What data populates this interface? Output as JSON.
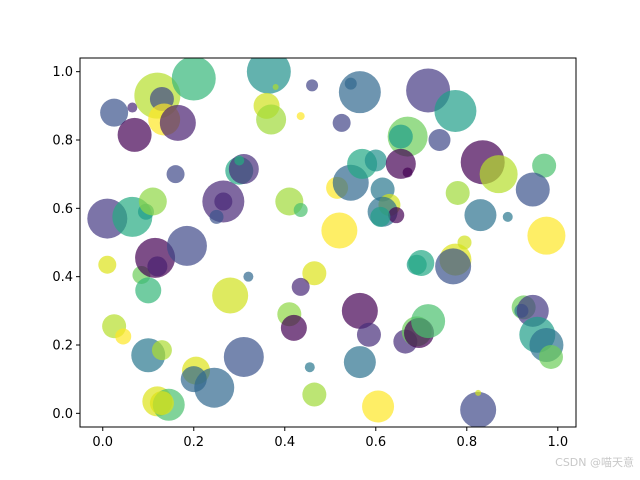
{
  "chart_data": {
    "type": "scatter",
    "title": "",
    "xlabel": "",
    "ylabel": "",
    "xlim": [
      -0.05,
      1.04
    ],
    "ylim": [
      -0.04,
      1.04
    ],
    "grid": false,
    "legend": "none",
    "colormap": "viridis",
    "alpha": 0.7,
    "x_ticks": [
      "0.0",
      "0.2",
      "0.4",
      "0.6",
      "0.8",
      "1.0"
    ],
    "y_ticks": [
      "0.0",
      "0.2",
      "0.4",
      "0.6",
      "0.8",
      "1.0"
    ],
    "points": [
      {
        "x": 0.025,
        "y": 0.88,
        "size": 14,
        "color": "#3b528b"
      },
      {
        "x": 0.065,
        "y": 0.895,
        "size": 5,
        "color": "#482878"
      },
      {
        "x": 0.07,
        "y": 0.815,
        "size": 17,
        "color": "#440154"
      },
      {
        "x": 0.12,
        "y": 0.93,
        "size": 23,
        "color": "#b5de2b"
      },
      {
        "x": 0.13,
        "y": 0.92,
        "size": 12,
        "color": "#3e4989"
      },
      {
        "x": 0.135,
        "y": 0.86,
        "size": 16,
        "color": "#fde725"
      },
      {
        "x": 0.165,
        "y": 0.85,
        "size": 18,
        "color": "#481f70"
      },
      {
        "x": 0.2,
        "y": 0.98,
        "size": 22,
        "color": "#35b779"
      },
      {
        "x": 0.365,
        "y": 1.0,
        "size": 22,
        "color": "#21918c"
      },
      {
        "x": 0.36,
        "y": 0.9,
        "size": 13,
        "color": "#d0e11c"
      },
      {
        "x": 0.37,
        "y": 0.86,
        "size": 15,
        "color": "#a0da39"
      },
      {
        "x": 0.38,
        "y": 0.955,
        "size": 3,
        "color": "#addc30"
      },
      {
        "x": 0.46,
        "y": 0.96,
        "size": 6,
        "color": "#414487"
      },
      {
        "x": 0.435,
        "y": 0.87,
        "size": 4,
        "color": "#fde725"
      },
      {
        "x": 0.525,
        "y": 0.85,
        "size": 9,
        "color": "#414487"
      },
      {
        "x": 0.545,
        "y": 0.965,
        "size": 6,
        "color": "#31688e"
      },
      {
        "x": 0.565,
        "y": 0.94,
        "size": 21,
        "color": "#31688e"
      },
      {
        "x": 0.67,
        "y": 0.81,
        "size": 20,
        "color": "#6ccd5a"
      },
      {
        "x": 0.655,
        "y": 0.81,
        "size": 12,
        "color": "#1f9e89"
      },
      {
        "x": 0.715,
        "y": 0.945,
        "size": 22,
        "color": "#443983"
      },
      {
        "x": 0.74,
        "y": 0.8,
        "size": 11,
        "color": "#3e4989"
      },
      {
        "x": 0.775,
        "y": 0.885,
        "size": 21,
        "color": "#1f9e89"
      },
      {
        "x": 0.835,
        "y": 0.735,
        "size": 22,
        "color": "#440154"
      },
      {
        "x": 0.87,
        "y": 0.7,
        "size": 19,
        "color": "#b5de2b"
      },
      {
        "x": 0.97,
        "y": 0.725,
        "size": 12,
        "color": "#4ac16d"
      },
      {
        "x": 0.945,
        "y": 0.655,
        "size": 17,
        "color": "#3b528b"
      },
      {
        "x": 0.83,
        "y": 0.58,
        "size": 16,
        "color": "#2c728e"
      },
      {
        "x": 0.89,
        "y": 0.575,
        "size": 5,
        "color": "#2a788e"
      },
      {
        "x": 0.975,
        "y": 0.52,
        "size": 19,
        "color": "#fde725"
      },
      {
        "x": 0.78,
        "y": 0.645,
        "size": 12,
        "color": "#a0da39"
      },
      {
        "x": 0.01,
        "y": 0.57,
        "size": 20,
        "color": "#443983"
      },
      {
        "x": 0.065,
        "y": 0.575,
        "size": 20,
        "color": "#25ab82"
      },
      {
        "x": 0.095,
        "y": 0.59,
        "size": 8,
        "color": "#1f9e89"
      },
      {
        "x": 0.11,
        "y": 0.62,
        "size": 14,
        "color": "#8fd744"
      },
      {
        "x": 0.16,
        "y": 0.7,
        "size": 9,
        "color": "#3e4989"
      },
      {
        "x": 0.265,
        "y": 0.62,
        "size": 21,
        "color": "#482878"
      },
      {
        "x": 0.265,
        "y": 0.62,
        "size": 9,
        "color": "#482878"
      },
      {
        "x": 0.25,
        "y": 0.575,
        "size": 7,
        "color": "#3b528b"
      },
      {
        "x": 0.3,
        "y": 0.71,
        "size": 14,
        "color": "#22a884"
      },
      {
        "x": 0.31,
        "y": 0.715,
        "size": 15,
        "color": "#472d7b"
      },
      {
        "x": 0.3,
        "y": 0.74,
        "size": 5,
        "color": "#25ab82"
      },
      {
        "x": 0.41,
        "y": 0.62,
        "size": 14,
        "color": "#a0da39"
      },
      {
        "x": 0.435,
        "y": 0.595,
        "size": 7,
        "color": "#4ac16d"
      },
      {
        "x": 0.515,
        "y": 0.66,
        "size": 11,
        "color": "#fde725"
      },
      {
        "x": 0.545,
        "y": 0.675,
        "size": 18,
        "color": "#31688e"
      },
      {
        "x": 0.57,
        "y": 0.73,
        "size": 15,
        "color": "#22a884"
      },
      {
        "x": 0.6,
        "y": 0.74,
        "size": 11,
        "color": "#21918c"
      },
      {
        "x": 0.615,
        "y": 0.655,
        "size": 12,
        "color": "#2a788e"
      },
      {
        "x": 0.63,
        "y": 0.61,
        "size": 11,
        "color": "#d0e11c"
      },
      {
        "x": 0.615,
        "y": 0.59,
        "size": 15,
        "color": "#2c728e"
      },
      {
        "x": 0.645,
        "y": 0.58,
        "size": 8,
        "color": "#440154"
      },
      {
        "x": 0.61,
        "y": 0.575,
        "size": 10,
        "color": "#1f9e89"
      },
      {
        "x": 0.655,
        "y": 0.73,
        "size": 15,
        "color": "#440154"
      },
      {
        "x": 0.67,
        "y": 0.705,
        "size": 5,
        "color": "#440154"
      },
      {
        "x": 0.52,
        "y": 0.535,
        "size": 18,
        "color": "#fde725"
      },
      {
        "x": 0.01,
        "y": 0.435,
        "size": 9,
        "color": "#dde318"
      },
      {
        "x": 0.085,
        "y": 0.405,
        "size": 9,
        "color": "#6ccd5a"
      },
      {
        "x": 0.1,
        "y": 0.36,
        "size": 13,
        "color": "#35b779"
      },
      {
        "x": 0.115,
        "y": 0.455,
        "size": 20,
        "color": "#440154"
      },
      {
        "x": 0.12,
        "y": 0.43,
        "size": 10,
        "color": "#481f70"
      },
      {
        "x": 0.185,
        "y": 0.49,
        "size": 20,
        "color": "#3e4989"
      },
      {
        "x": 0.28,
        "y": 0.345,
        "size": 18,
        "color": "#d0e11c"
      },
      {
        "x": 0.32,
        "y": 0.4,
        "size": 5,
        "color": "#31688e"
      },
      {
        "x": 0.465,
        "y": 0.41,
        "size": 12,
        "color": "#dde318"
      },
      {
        "x": 0.435,
        "y": 0.37,
        "size": 9,
        "color": "#482878"
      },
      {
        "x": 0.41,
        "y": 0.29,
        "size": 12,
        "color": "#8fd744"
      },
      {
        "x": 0.42,
        "y": 0.25,
        "size": 13,
        "color": "#440154"
      },
      {
        "x": 0.455,
        "y": 0.135,
        "size": 5,
        "color": "#2a788e"
      },
      {
        "x": 0.465,
        "y": 0.055,
        "size": 12,
        "color": "#a0da39"
      },
      {
        "x": 0.565,
        "y": 0.3,
        "size": 18,
        "color": "#440154"
      },
      {
        "x": 0.585,
        "y": 0.23,
        "size": 12,
        "color": "#472d7b"
      },
      {
        "x": 0.565,
        "y": 0.15,
        "size": 16,
        "color": "#2c728e"
      },
      {
        "x": 0.605,
        "y": 0.02,
        "size": 16,
        "color": "#fde725"
      },
      {
        "x": 0.665,
        "y": 0.21,
        "size": 12,
        "color": "#472d7b"
      },
      {
        "x": 0.69,
        "y": 0.24,
        "size": 15,
        "color": "#6ccd5a"
      },
      {
        "x": 0.695,
        "y": 0.235,
        "size": 15,
        "color": "#440154"
      },
      {
        "x": 0.715,
        "y": 0.27,
        "size": 17,
        "color": "#4ac16d"
      },
      {
        "x": 0.69,
        "y": 0.435,
        "size": 10,
        "color": "#1f9e89"
      },
      {
        "x": 0.7,
        "y": 0.44,
        "size": 13,
        "color": "#22a884"
      },
      {
        "x": 0.775,
        "y": 0.45,
        "size": 16,
        "color": "#dde318"
      },
      {
        "x": 0.795,
        "y": 0.5,
        "size": 7,
        "color": "#d0e11c"
      },
      {
        "x": 0.77,
        "y": 0.43,
        "size": 18,
        "color": "#3b528b"
      },
      {
        "x": 0.925,
        "y": 0.31,
        "size": 12,
        "color": "#6ccd5a"
      },
      {
        "x": 0.92,
        "y": 0.3,
        "size": 7,
        "color": "#2a788e"
      },
      {
        "x": 0.945,
        "y": 0.3,
        "size": 16,
        "color": "#443983"
      },
      {
        "x": 0.955,
        "y": 0.23,
        "size": 18,
        "color": "#1f9e89"
      },
      {
        "x": 0.975,
        "y": 0.2,
        "size": 17,
        "color": "#2c728e"
      },
      {
        "x": 0.985,
        "y": 0.165,
        "size": 12,
        "color": "#6ccd5a"
      },
      {
        "x": 0.825,
        "y": 0.01,
        "size": 18,
        "color": "#3e4989"
      },
      {
        "x": 0.825,
        "y": 0.06,
        "size": 3,
        "color": "#d0e11c"
      },
      {
        "x": 0.025,
        "y": 0.255,
        "size": 12,
        "color": "#b5de2b"
      },
      {
        "x": 0.045,
        "y": 0.225,
        "size": 8,
        "color": "#fde725"
      },
      {
        "x": 0.1,
        "y": 0.17,
        "size": 17,
        "color": "#2a788e"
      },
      {
        "x": 0.13,
        "y": 0.185,
        "size": 10,
        "color": "#addc30"
      },
      {
        "x": 0.205,
        "y": 0.125,
        "size": 14,
        "color": "#dde318"
      },
      {
        "x": 0.2,
        "y": 0.1,
        "size": 13,
        "color": "#31688e"
      },
      {
        "x": 0.245,
        "y": 0.075,
        "size": 20,
        "color": "#31688e"
      },
      {
        "x": 0.31,
        "y": 0.165,
        "size": 20,
        "color": "#3b528b"
      },
      {
        "x": 0.12,
        "y": 0.035,
        "size": 15,
        "color": "#dde318"
      },
      {
        "x": 0.145,
        "y": 0.025,
        "size": 16,
        "color": "#4ac16d"
      },
      {
        "x": 0.13,
        "y": 0.03,
        "size": 12,
        "color": "#dde318"
      }
    ]
  },
  "watermark": "CSDN @喵天意"
}
